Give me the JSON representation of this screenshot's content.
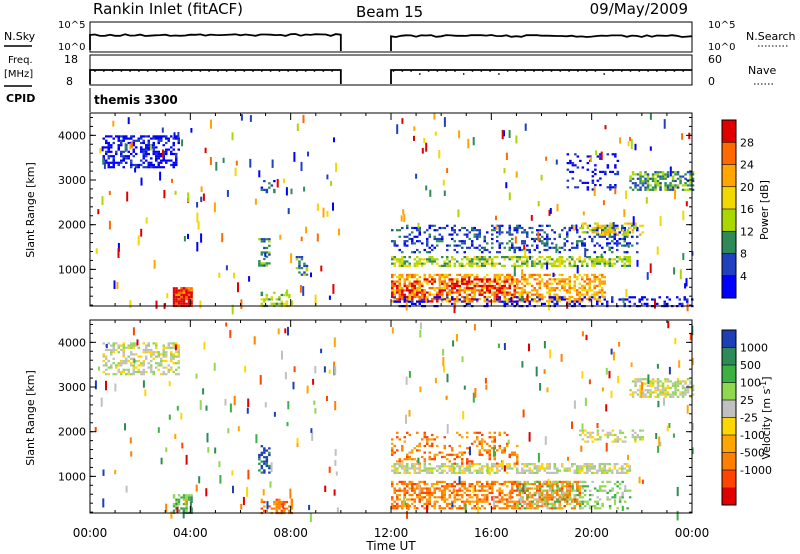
{
  "header": {
    "title": "Rankin Inlet (fitACF)",
    "beam": "Beam 15",
    "date": "09/May/2009"
  },
  "strips": {
    "nsky": {
      "label": "N.Sky",
      "right_label": "N.Search",
      "left_ticks": [
        "10^5",
        "10^0"
      ],
      "right_ticks": [
        "10^5",
        "10^0"
      ]
    },
    "freq": {
      "label_top": "Freq.",
      "label_unit": "[MHz]",
      "right_label": "Nave",
      "left_ticks": [
        "18",
        "8"
      ],
      "right_ticks": [
        "60",
        "0"
      ]
    },
    "cpid": {
      "label": "CPID",
      "value": "themis 3300"
    }
  },
  "colors": {
    "frame": "#000000",
    "background": "#ffffff"
  },
  "chart_data": [
    {
      "type": "heatmap",
      "name": "power",
      "ylabel": "Slant Range [km]",
      "xlabel": "",
      "x_ticks": [
        "00:00",
        "04:00",
        "08:00",
        "12:00",
        "16:00",
        "20:00",
        "00:00"
      ],
      "x_range_hours": [
        0,
        24
      ],
      "y_ticks": [
        "1000",
        "2000",
        "3000",
        "4000"
      ],
      "y_range_km": [
        180,
        4500
      ],
      "colorbar": {
        "label": "Power [dB]",
        "ticks": [
          "28",
          "24",
          "20",
          "16",
          "12",
          "8",
          "4"
        ],
        "colors": [
          "#e00000",
          "#ff6a00",
          "#ffa500",
          "#f0d800",
          "#a8d800",
          "#2e8b57",
          "#2040c0",
          "#0000ff"
        ]
      },
      "data_gap_hours": [
        10,
        12
      ],
      "clusters": [
        {
          "t": [
            0.5,
            3.5
          ],
          "r": [
            3300,
            4000
          ],
          "level": 7,
          "density": 0.5
        },
        {
          "t": [
            3.3,
            4.0
          ],
          "r": [
            200,
            600
          ],
          "level": 0,
          "density": 0.9
        },
        {
          "t": [
            3.4,
            4.0
          ],
          "r": [
            400,
            600
          ],
          "level": 1,
          "density": 0.6
        },
        {
          "t": [
            6.7,
            7.1
          ],
          "r": [
            1100,
            1700
          ],
          "level": 5,
          "density": 0.5
        },
        {
          "t": [
            6.8,
            7.3
          ],
          "r": [
            2700,
            3000
          ],
          "level": 6,
          "density": 0.4
        },
        {
          "t": [
            6.8,
            8.0
          ],
          "r": [
            200,
            500
          ],
          "level": 4,
          "density": 0.4
        },
        {
          "t": [
            8.2,
            8.6
          ],
          "r": [
            900,
            1300
          ],
          "level": 5,
          "density": 0.4
        },
        {
          "t": [
            12.0,
            21.5
          ],
          "r": [
            1100,
            1300
          ],
          "level": 4,
          "density": 0.6
        },
        {
          "t": [
            12.0,
            20.5
          ],
          "r": [
            300,
            900
          ],
          "level": 2,
          "density": 0.55
        },
        {
          "t": [
            12.0,
            17.0
          ],
          "r": [
            300,
            800
          ],
          "level": 0,
          "density": 0.3
        },
        {
          "t": [
            12.0,
            21.8
          ],
          "r": [
            1400,
            2000
          ],
          "level": 6,
          "density": 0.3
        },
        {
          "t": [
            19.5,
            22.0
          ],
          "r": [
            1800,
            2050
          ],
          "level": 3,
          "density": 0.4
        },
        {
          "t": [
            21.5,
            24.0
          ],
          "r": [
            2800,
            3200
          ],
          "level": 5,
          "density": 0.6
        },
        {
          "t": [
            19.0,
            21.0
          ],
          "r": [
            2800,
            3600
          ],
          "level": 7,
          "density": 0.2
        },
        {
          "t": [
            12.0,
            24.0
          ],
          "r": [
            180,
            400
          ],
          "level": 7,
          "density": 0.3
        }
      ]
    },
    {
      "type": "heatmap",
      "name": "velocity",
      "ylabel": "Slant Range [km]",
      "xlabel": "Time UT",
      "x_ticks": [
        "00:00",
        "04:00",
        "08:00",
        "12:00",
        "16:00",
        "20:00",
        "00:00"
      ],
      "x_range_hours": [
        0,
        24
      ],
      "y_ticks": [
        "1000",
        "2000",
        "3000",
        "4000"
      ],
      "y_range_km": [
        180,
        4500
      ],
      "colorbar": {
        "label": "Velocity [m s^-1]",
        "ticks": [
          "1000",
          "500",
          "100",
          "25",
          "-25",
          "-100",
          "-500",
          "-1000"
        ],
        "colors": [
          "#1c3fb5",
          "#2e8b57",
          "#3cb043",
          "#90d850",
          "#c0c0c0",
          "#ffd700",
          "#ffa500",
          "#ff7f00",
          "#ff4500",
          "#e00000"
        ]
      },
      "data_gap_hours": [
        10,
        12
      ],
      "clusters": [
        {
          "t": [
            0.5,
            3.5
          ],
          "r": [
            3300,
            4000
          ],
          "level": 4,
          "density": 0.5
        },
        {
          "t": [
            3.3,
            4.0
          ],
          "r": [
            200,
            600
          ],
          "level": 2,
          "density": 0.6
        },
        {
          "t": [
            6.7,
            7.1
          ],
          "r": [
            1100,
            1700
          ],
          "level": 0,
          "density": 0.5
        },
        {
          "t": [
            6.8,
            8.0
          ],
          "r": [
            200,
            500
          ],
          "level": 7,
          "density": 0.4
        },
        {
          "t": [
            12.0,
            21.5
          ],
          "r": [
            1100,
            1300
          ],
          "level": 4,
          "density": 0.6
        },
        {
          "t": [
            12.0,
            19.5
          ],
          "r": [
            300,
            900
          ],
          "level": 7,
          "density": 0.55
        },
        {
          "t": [
            12.0,
            17.0
          ],
          "r": [
            1300,
            2000
          ],
          "level": 7,
          "density": 0.25
        },
        {
          "t": [
            19.5,
            22.0
          ],
          "r": [
            1800,
            2050
          ],
          "level": 4,
          "density": 0.4
        },
        {
          "t": [
            21.5,
            24.0
          ],
          "r": [
            2800,
            3200
          ],
          "level": 4,
          "density": 0.6
        },
        {
          "t": [
            17.0,
            21.5
          ],
          "r": [
            300,
            900
          ],
          "level": 3,
          "density": 0.3
        }
      ]
    }
  ]
}
